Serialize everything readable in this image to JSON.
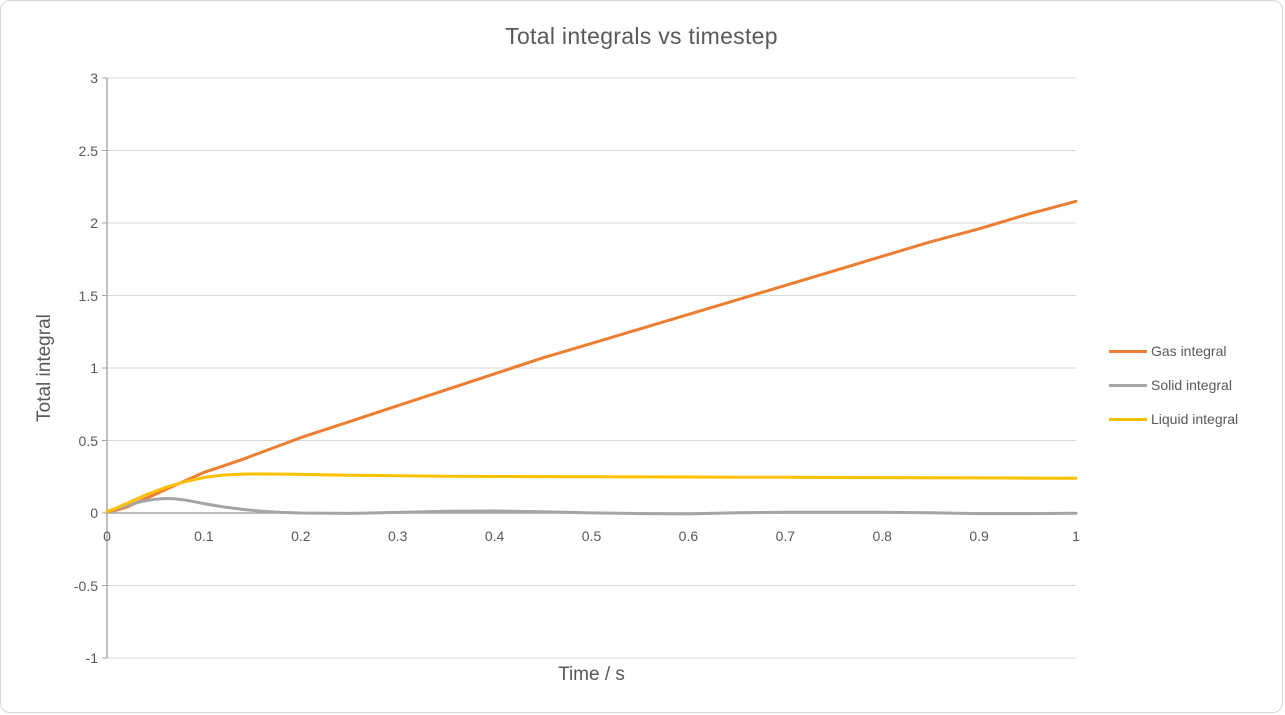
{
  "chart_data": {
    "type": "line",
    "title": "Total integrals vs timestep",
    "xlabel": "Time / s",
    "ylabel": "Total integral",
    "xlim": [
      0,
      1
    ],
    "ylim": [
      -1,
      3
    ],
    "grid": true,
    "legend_position": "right",
    "xticks": [
      0,
      0.1,
      0.2,
      0.3,
      0.4,
      0.5,
      0.6,
      0.7,
      0.8,
      0.9,
      1
    ],
    "xtick_labels": [
      "0",
      "0.1",
      "0.2",
      "0.3",
      "0.4",
      "0.5",
      "0.6",
      "0.7",
      "0.8",
      "0.9",
      "1"
    ],
    "yticks": [
      3,
      2.5,
      2,
      1.5,
      1,
      0.5,
      0,
      -0.5,
      -1
    ],
    "ytick_labels": [
      "3",
      "2.5",
      "2",
      "1.5",
      "1",
      "0.5",
      "0",
      "-0.5",
      "-1"
    ],
    "x": [
      0,
      0.01,
      0.02,
      0.03,
      0.04,
      0.05,
      0.06,
      0.07,
      0.08,
      0.09,
      0.1,
      0.12,
      0.14,
      0.16,
      0.18,
      0.2,
      0.25,
      0.3,
      0.35,
      0.4,
      0.45,
      0.5,
      0.55,
      0.6,
      0.65,
      0.7,
      0.75,
      0.8,
      0.85,
      0.9,
      0.95,
      1.0
    ],
    "series": [
      {
        "name": "Gas integral",
        "color": "#ED7D31",
        "values": [
          0.01,
          0.02,
          0.04,
          0.07,
          0.1,
          0.13,
          0.16,
          0.19,
          0.22,
          0.25,
          0.28,
          0.325,
          0.37,
          0.42,
          0.47,
          0.52,
          0.63,
          0.74,
          0.85,
          0.96,
          1.07,
          1.17,
          1.27,
          1.37,
          1.47,
          1.57,
          1.67,
          1.77,
          1.87,
          1.96,
          2.06,
          2.15
        ]
      },
      {
        "name": "Solid integral",
        "color": "#A5A5A5",
        "values": [
          0.01,
          0.03,
          0.05,
          0.07,
          0.085,
          0.095,
          0.1,
          0.098,
          0.09,
          0.078,
          0.065,
          0.042,
          0.025,
          0.012,
          0.004,
          0.0,
          -0.003,
          0.004,
          0.012,
          0.014,
          0.008,
          0.001,
          -0.004,
          -0.006,
          0.002,
          0.005,
          0.005,
          0.005,
          0.002,
          -0.004,
          -0.004,
          -0.002
        ]
      },
      {
        "name": "Liquid integral",
        "color": "#FFC000",
        "values": [
          0.01,
          0.035,
          0.065,
          0.095,
          0.125,
          0.15,
          0.175,
          0.195,
          0.215,
          0.23,
          0.245,
          0.262,
          0.268,
          0.269,
          0.268,
          0.266,
          0.261,
          0.257,
          0.254,
          0.252,
          0.251,
          0.25,
          0.249,
          0.248,
          0.247,
          0.246,
          0.245,
          0.244,
          0.243,
          0.242,
          0.241,
          0.24
        ]
      }
    ]
  },
  "colors": {
    "text": "#595959",
    "gridline": "#D9D9D9",
    "axis": "#A6A6A6",
    "background": "#FFFFFF",
    "border": "#D7D7D7"
  }
}
